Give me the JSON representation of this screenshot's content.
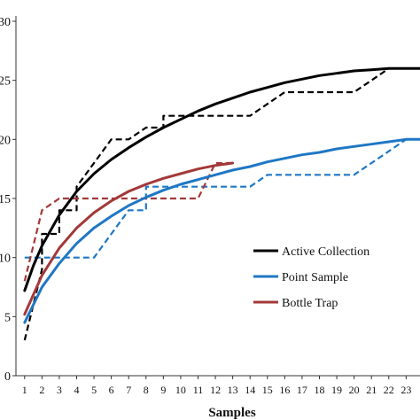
{
  "chart_data": {
    "type": "line",
    "title": "",
    "xlabel": "Samples",
    "ylabel": "",
    "xlim": [
      0.5,
      23.8
    ],
    "ylim": [
      0,
      30
    ],
    "x_ticks": [
      1,
      2,
      3,
      4,
      5,
      6,
      7,
      8,
      9,
      10,
      11,
      12,
      13,
      14,
      15,
      16,
      17,
      18,
      19,
      20,
      21,
      22,
      23
    ],
    "x_tick_labels": [
      "1",
      "2",
      "3",
      "4",
      "5",
      "6",
      "7",
      "8",
      "9",
      "10",
      "11",
      "12",
      "13",
      "14",
      "15",
      "16",
      "17",
      "18",
      "19",
      "20",
      "21",
      "22",
      "23"
    ],
    "y_ticks": [
      0,
      5,
      10,
      15,
      20,
      25,
      30
    ],
    "y_tick_labels": [
      "0",
      "5",
      "10",
      "15",
      "20",
      "25",
      "30"
    ],
    "grid": false,
    "legend": {
      "position": "center-right"
    },
    "series": [
      {
        "name": "Active Collection",
        "color": "#000000",
        "style": "solid",
        "role": "fit",
        "x": [
          1,
          1.5,
          2,
          3,
          4,
          5,
          6,
          7,
          8,
          9,
          10,
          11,
          12,
          13,
          14,
          15,
          16,
          17,
          18,
          19,
          20,
          21,
          22,
          23,
          23.8
        ],
        "y": [
          7.2,
          9.3,
          11.0,
          13.6,
          15.6,
          17.1,
          18.3,
          19.3,
          20.2,
          21.0,
          21.7,
          22.4,
          23.0,
          23.5,
          24.0,
          24.4,
          24.8,
          25.1,
          25.4,
          25.6,
          25.8,
          25.9,
          26.0,
          26.0,
          26.0
        ]
      },
      {
        "name": "Active Collection observed",
        "color": "#000000",
        "style": "dashed",
        "role": "observed",
        "x": [
          1,
          2,
          2,
          3,
          3,
          4,
          4,
          5,
          6,
          7,
          8,
          9,
          9,
          13,
          14,
          15,
          16,
          17,
          18,
          19,
          20,
          21,
          22,
          23,
          23.8
        ],
        "y": [
          3,
          9,
          12,
          12,
          14,
          14,
          16,
          18,
          20,
          20,
          21,
          21,
          22,
          22,
          22,
          23,
          24,
          24,
          24,
          24,
          24,
          25,
          26,
          26,
          26
        ]
      },
      {
        "name": "Point Sample",
        "color": "#1f77c4",
        "style": "solid",
        "role": "fit",
        "x": [
          1,
          2,
          3,
          4,
          5,
          6,
          7,
          8,
          9,
          10,
          11,
          12,
          13,
          14,
          15,
          16,
          17,
          18,
          19,
          20,
          21,
          22,
          23,
          23.8
        ],
        "y": [
          4.5,
          7.5,
          9.5,
          11.2,
          12.5,
          13.5,
          14.4,
          15.1,
          15.7,
          16.2,
          16.6,
          17.0,
          17.4,
          17.7,
          18.1,
          18.4,
          18.7,
          18.9,
          19.2,
          19.4,
          19.6,
          19.8,
          20.0,
          20.0
        ]
      },
      {
        "name": "Point Sample observed",
        "color": "#1f77c4",
        "style": "dashed",
        "role": "observed",
        "x": [
          1,
          2,
          5,
          6,
          7,
          8,
          8,
          10,
          11,
          12,
          13,
          14,
          15,
          16,
          16,
          17,
          18,
          19,
          20,
          21,
          22,
          23,
          23.8
        ],
        "y": [
          10,
          10,
          10,
          12,
          14,
          14,
          16,
          16,
          16,
          16,
          16,
          16,
          17,
          17,
          17,
          17,
          17,
          17,
          17,
          18,
          19,
          20,
          20
        ]
      },
      {
        "name": "Bottle Trap",
        "color": "#a33838",
        "style": "solid",
        "role": "fit",
        "x": [
          1,
          2,
          3,
          4,
          5,
          6,
          7,
          8,
          9,
          10,
          11,
          12,
          13
        ],
        "y": [
          5.2,
          8.5,
          10.8,
          12.5,
          13.8,
          14.8,
          15.6,
          16.2,
          16.7,
          17.1,
          17.5,
          17.8,
          18.0
        ]
      },
      {
        "name": "Bottle Trap observed",
        "color": "#a33838",
        "style": "dashed",
        "role": "observed",
        "x": [
          1,
          2,
          3,
          5,
          7,
          9,
          11,
          12,
          13
        ],
        "y": [
          8,
          14,
          15,
          15,
          15,
          15,
          15,
          18,
          18
        ]
      }
    ]
  }
}
